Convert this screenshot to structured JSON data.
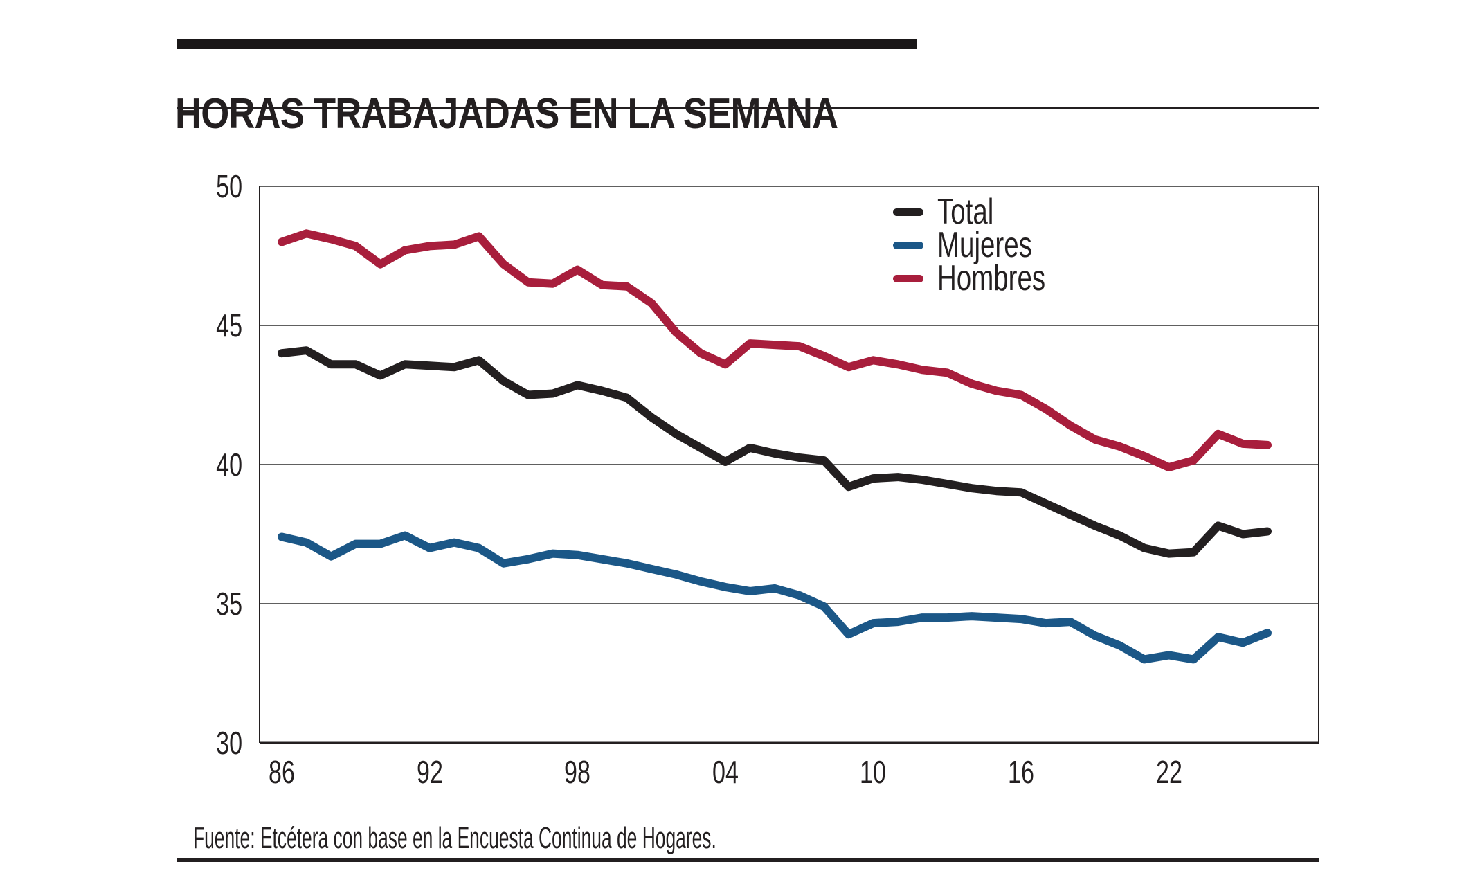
{
  "header": {
    "title": "HORAS TRABAJADAS EN LA SEMANA"
  },
  "footer": {
    "source": "Fuente: Etcétera con base en la Encuesta Continua de Hogares."
  },
  "colors": {
    "background": "#ffffff",
    "text": "#231f20",
    "accent_bar": "#1a1718",
    "grid": "#4a4a4a",
    "axis": "#231f20",
    "total": "#231f20",
    "mujeres": "#1b5787",
    "hombres": "#a81e3c"
  },
  "chart_data": {
    "type": "line",
    "title": "HORAS TRABAJADAS EN LA SEMANA",
    "xlabel": "",
    "ylabel": "",
    "ylim": [
      30,
      50
    ],
    "yticks": [
      50,
      45,
      40,
      35,
      30
    ],
    "grid": "horizontal",
    "legend_position": "top-right",
    "x": [
      1986,
      1987,
      1988,
      1989,
      1990,
      1991,
      1992,
      1993,
      1994,
      1995,
      1996,
      1997,
      1998,
      1999,
      2000,
      2001,
      2002,
      2003,
      2004,
      2005,
      2006,
      2007,
      2008,
      2009,
      2010,
      2011,
      2012,
      2013,
      2014,
      2015,
      2016,
      2017,
      2018,
      2019,
      2020,
      2021,
      2022,
      2023,
      2024,
      2025,
      2026
    ],
    "x_ticks": [
      {
        "year": 1986,
        "label": "86"
      },
      {
        "year": 1992,
        "label": "92"
      },
      {
        "year": 1998,
        "label": "98"
      },
      {
        "year": 2004,
        "label": "04"
      },
      {
        "year": 2010,
        "label": "10"
      },
      {
        "year": 2016,
        "label": "16"
      },
      {
        "year": 2022,
        "label": "22"
      }
    ],
    "series": [
      {
        "name": "Total",
        "color": "#231f20",
        "values": [
          44.0,
          44.1,
          43.6,
          43.6,
          43.2,
          43.6,
          43.55,
          43.5,
          43.75,
          43.0,
          42.5,
          42.55,
          42.85,
          42.65,
          42.4,
          41.7,
          41.1,
          40.6,
          40.1,
          40.6,
          40.4,
          40.25,
          40.15,
          39.2,
          39.5,
          39.55,
          39.45,
          39.3,
          39.15,
          39.05,
          39.0,
          38.6,
          38.2,
          37.8,
          37.45,
          37.0,
          36.8,
          36.85,
          37.8,
          37.5,
          37.6
        ]
      },
      {
        "name": "Mujeres",
        "color": "#1b5787",
        "values": [
          37.4,
          37.2,
          36.7,
          37.15,
          37.15,
          37.45,
          37.0,
          37.2,
          37.0,
          36.45,
          36.6,
          36.8,
          36.75,
          36.6,
          36.45,
          36.25,
          36.05,
          35.8,
          35.6,
          35.45,
          35.55,
          35.3,
          34.9,
          33.9,
          34.3,
          34.35,
          34.5,
          34.5,
          34.55,
          34.5,
          34.45,
          34.3,
          34.35,
          33.85,
          33.5,
          33.0,
          33.15,
          33.0,
          33.8,
          33.6,
          33.95
        ]
      },
      {
        "name": "Hombres",
        "color": "#a81e3c",
        "values": [
          48.0,
          48.3,
          48.1,
          47.85,
          47.2,
          47.7,
          47.85,
          47.9,
          48.2,
          47.2,
          46.55,
          46.5,
          47.0,
          46.45,
          46.4,
          45.8,
          44.75,
          44.0,
          43.6,
          44.35,
          44.3,
          44.25,
          43.9,
          43.5,
          43.75,
          43.6,
          43.4,
          43.3,
          42.9,
          42.65,
          42.5,
          42.0,
          41.4,
          40.9,
          40.65,
          40.3,
          39.9,
          40.15,
          41.1,
          40.75,
          40.7
        ]
      }
    ]
  }
}
